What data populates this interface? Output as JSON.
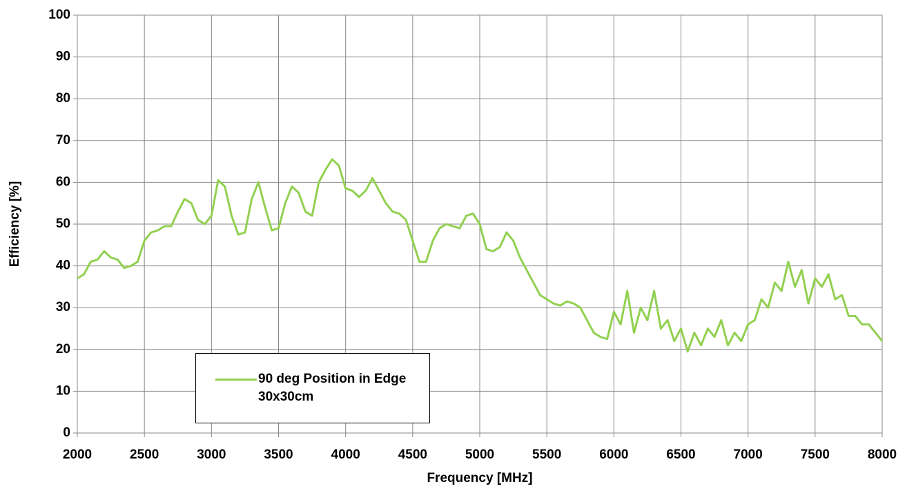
{
  "chart_data": {
    "type": "line",
    "x_label": "Frequency [MHz]",
    "y_label": "Efficiency [%]",
    "xlim": [
      2000,
      8000
    ],
    "ylim": [
      0,
      100
    ],
    "xticks": [
      2000,
      2500,
      3000,
      3500,
      4000,
      4500,
      5000,
      5500,
      6000,
      6500,
      7000,
      7500,
      8000
    ],
    "yticks": [
      0,
      10,
      20,
      30,
      40,
      50,
      60,
      70,
      80,
      90,
      100
    ],
    "grid": true,
    "legend": "lower-left",
    "x": [
      2000,
      2050,
      2100,
      2150,
      2200,
      2250,
      2300,
      2350,
      2400,
      2450,
      2500,
      2550,
      2600,
      2650,
      2700,
      2750,
      2800,
      2850,
      2900,
      2950,
      3000,
      3050,
      3100,
      3150,
      3200,
      3250,
      3300,
      3350,
      3400,
      3450,
      3500,
      3550,
      3600,
      3650,
      3700,
      3750,
      3800,
      3850,
      3900,
      3950,
      4000,
      4050,
      4100,
      4150,
      4200,
      4250,
      4300,
      4350,
      4400,
      4450,
      4500,
      4550,
      4600,
      4650,
      4700,
      4750,
      4800,
      4850,
      4900,
      4950,
      5000,
      5050,
      5100,
      5150,
      5200,
      5250,
      5300,
      5350,
      5400,
      5450,
      5500,
      5550,
      5600,
      5650,
      5700,
      5750,
      5800,
      5850,
      5900,
      5950,
      6000,
      6050,
      6100,
      6150,
      6200,
      6250,
      6300,
      6350,
      6400,
      6450,
      6500,
      6550,
      6600,
      6650,
      6700,
      6750,
      6800,
      6850,
      6900,
      6950,
      7000,
      7050,
      7100,
      7150,
      7200,
      7250,
      7300,
      7350,
      7400,
      7450,
      7500,
      7550,
      7600,
      7650,
      7700,
      7750,
      7800,
      7850,
      7900,
      7950,
      8000
    ],
    "series": [
      {
        "name": "90 deg Position in Edge 30x30cm",
        "color": "#92d050",
        "values": [
          37,
          38,
          41,
          41.5,
          43.5,
          42,
          41.5,
          39.5,
          40,
          41,
          46,
          48,
          48.5,
          49.5,
          49.5,
          53,
          56,
          55,
          51,
          50,
          52,
          60.5,
          59,
          52,
          47.5,
          48,
          56,
          60,
          54,
          48.5,
          49,
          55,
          59,
          57.5,
          53,
          52,
          60,
          63,
          65.5,
          64,
          58.5,
          58,
          56.5,
          58,
          61,
          58,
          55,
          53,
          52.5,
          51,
          46,
          41,
          41,
          46,
          49,
          50,
          49.5,
          49,
          52,
          52.5,
          50,
          44,
          43.5,
          44.5,
          48,
          46,
          42,
          39,
          36,
          33,
          32,
          31,
          30.5,
          31.5,
          31,
          30,
          27,
          24,
          23,
          22.5,
          29,
          26,
          34,
          24,
          30,
          27,
          34,
          25,
          27,
          22,
          25,
          19.5,
          24,
          21,
          25,
          23,
          27,
          21,
          24,
          22,
          26,
          27,
          32,
          30,
          36,
          34,
          41,
          35,
          39,
          31,
          37,
          35,
          38,
          32,
          33,
          28,
          28,
          26,
          26,
          24,
          22
        ]
      }
    ]
  }
}
